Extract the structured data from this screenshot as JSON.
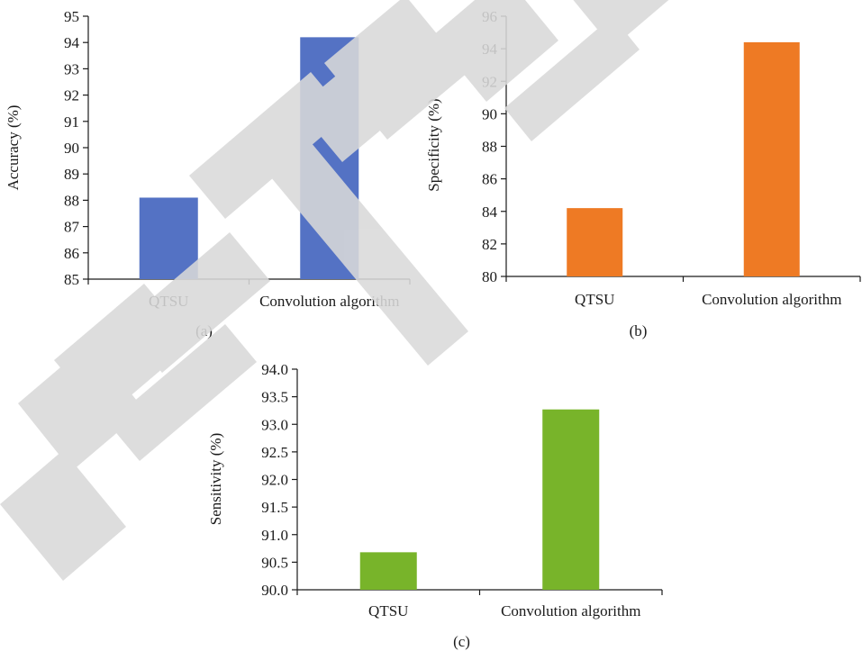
{
  "watermark_text": "RETRACTED",
  "chart_data": [
    {
      "type": "bar",
      "panel_label": "(a)",
      "categories": [
        "QTSU",
        "Convolution algorithm"
      ],
      "values": [
        88.1,
        94.2
      ],
      "ylabel": "Accuracy (%)",
      "ylim": [
        85,
        95
      ],
      "yticks": [
        "85",
        "86",
        "87",
        "88",
        "89",
        "90",
        "91",
        "92",
        "93",
        "94",
        "95"
      ],
      "color": "#5472c4",
      "grid": false
    },
    {
      "type": "bar",
      "panel_label": "(b)",
      "categories": [
        "QTSU",
        "Convolution algorithm"
      ],
      "values": [
        84.2,
        94.4
      ],
      "ylabel": "Specificity (%)",
      "ylim": [
        80,
        96
      ],
      "yticks": [
        "80",
        "82",
        "84",
        "86",
        "88",
        "90",
        "92",
        "94",
        "96"
      ],
      "color": "#ee7a24",
      "grid": false
    },
    {
      "type": "bar",
      "panel_label": "(c)",
      "categories": [
        "QTSU",
        "Convolution algorithm"
      ],
      "values": [
        90.68,
        93.27
      ],
      "ylabel": "Sensitivity (%)",
      "ylim": [
        90.0,
        94.0
      ],
      "yticks": [
        "90.0",
        "90.5",
        "91.0",
        "91.5",
        "92.0",
        "92.5",
        "93.0",
        "93.5",
        "94.0"
      ],
      "color": "#78b42a",
      "grid": false
    }
  ]
}
